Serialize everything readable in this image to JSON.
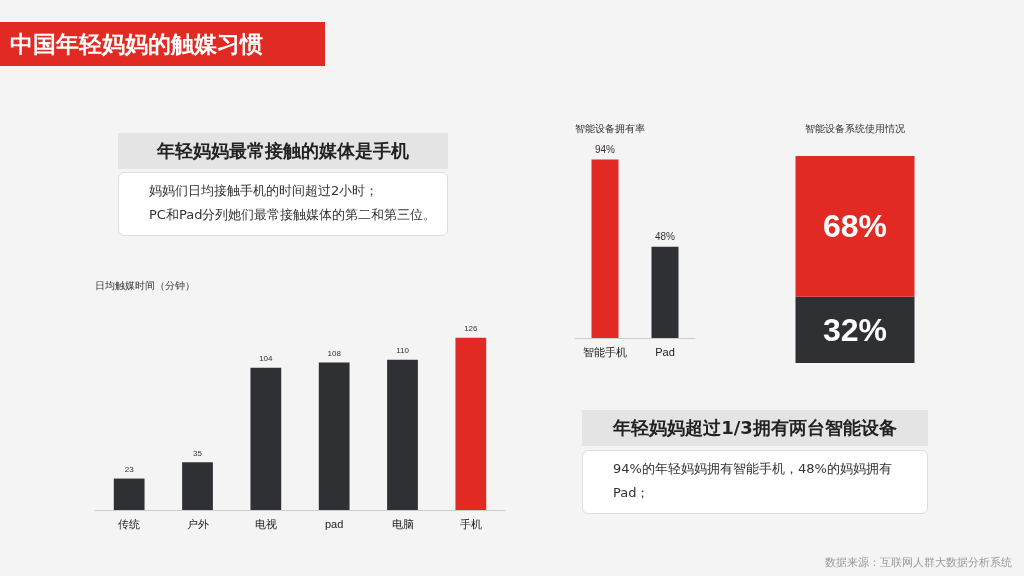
{
  "chart_data": [
    {
      "type": "bar",
      "title": "日均触媒时间（分钟）",
      "categories": [
        "传统",
        "户外",
        "电视",
        "pad",
        "电脑",
        "手机"
      ],
      "values": [
        23,
        35,
        104,
        108,
        110,
        126
      ],
      "colors": [
        "#2e3033",
        "#2e3033",
        "#2e3033",
        "#2e3033",
        "#2e3033",
        "#e02a23"
      ],
      "data_labels": true,
      "tick_labels": "x"
    },
    {
      "type": "bar",
      "title": "智能设备拥有率",
      "categories": [
        "智能手机",
        "Pad"
      ],
      "values": [
        94,
        48
      ],
      "colors": [
        "#e02a23",
        "#2e3033"
      ],
      "value_labels": [
        "94%",
        "48%"
      ],
      "tick_labels": "x"
    },
    {
      "type": "bar",
      "title": "智能设备系统使用情况",
      "categories": [
        null
      ],
      "stacked": true,
      "tick_labels": false,
      "series": [
        {
          "color": "#2e3033",
          "values": [
            32
          ],
          "value_labels": [
            "32%"
          ]
        },
        {
          "color": "#e02a23",
          "values": [
            68
          ],
          "value_labels": [
            "68%"
          ]
        }
      ]
    },
    {
      "type": "other",
      "title": "中国年轻妈妈的触媒习惯",
      "annotations": [
        "年轻妈妈最常接触的媒体是手机",
        "妈妈们日均接触手机的时间超过2小时；",
        "PC和Pad分列她们最常接触媒体的第二和第三位。",
        "年轻妈妈超过1/3拥有两台智能设备",
        "94%的年轻妈妈拥有智能手机，48%的妈妈拥有Pad；",
        "数据来源：互联网人群大数据分析系统"
      ]
    }
  ]
}
